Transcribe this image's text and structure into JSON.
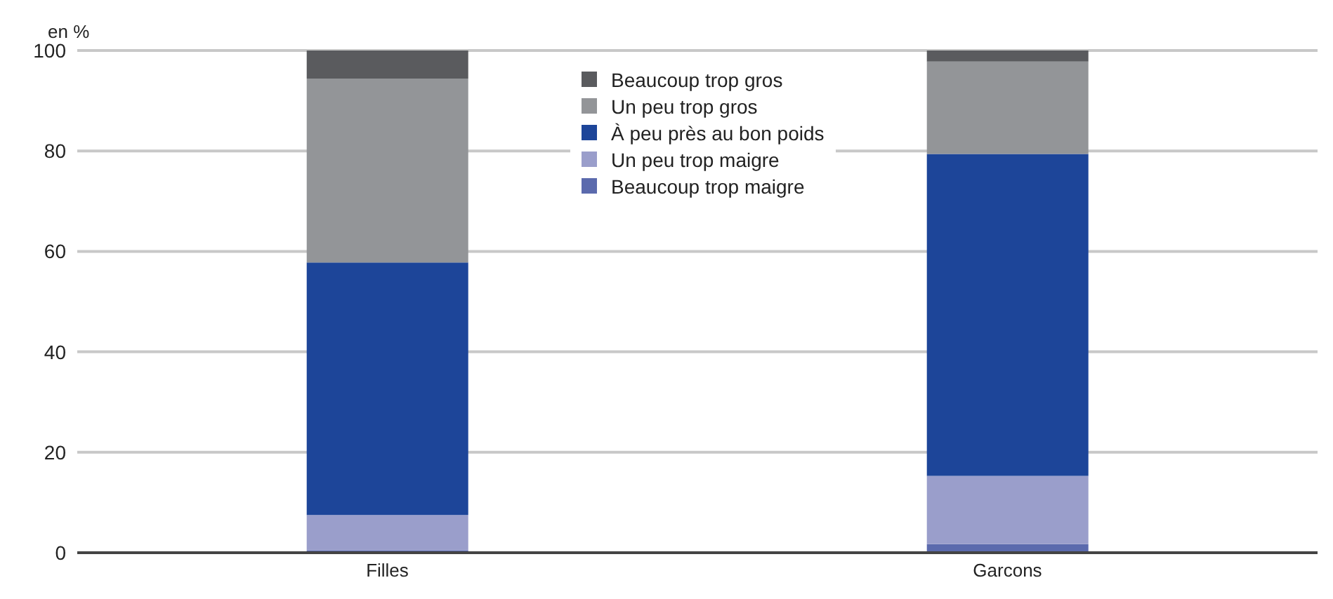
{
  "chart_data": {
    "type": "bar",
    "stacked": true,
    "ylabel": "en %",
    "categories": [
      "Filles",
      "Garcons"
    ],
    "series": [
      {
        "name": "Beaucoup trop maigre",
        "color": "#5b6aad",
        "values": [
          0.5,
          1.7
        ]
      },
      {
        "name": "Un peu trop maigre",
        "color": "#9a9ecb",
        "values": [
          7.0,
          13.6
        ]
      },
      {
        "name": "À peu près au bon poids",
        "color": "#1d4599",
        "values": [
          50.3,
          64.1
        ]
      },
      {
        "name": "Un peu trop gros",
        "color": "#939598",
        "values": [
          36.6,
          18.4
        ]
      },
      {
        "name": "Beaucoup trop gros",
        "color": "#5a5b5e",
        "values": [
          5.6,
          2.2
        ]
      }
    ],
    "ylim": [
      0,
      100
    ],
    "yticks": [
      0,
      20,
      40,
      60,
      80,
      100
    ],
    "grid": "y",
    "legend": "top"
  }
}
